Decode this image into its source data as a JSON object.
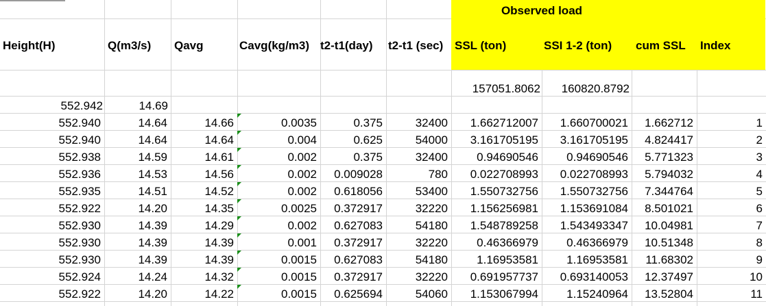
{
  "group_header": "Observed load",
  "headers": {
    "height": "Height(H)",
    "q": "Q(m3/s)",
    "qavg": "Qavg",
    "cavg": "Cavg(kg/m3)",
    "t_day": "t2-t1(day)",
    "t_sec": "t2-t1 (sec)",
    "ssl": "SSL (ton)",
    "ssi": "SSI 1-2 (ton)",
    "cum": "cum SSL",
    "index": "Index"
  },
  "totals": {
    "ssl": "157051.8062",
    "ssi": "160820.8792"
  },
  "first_row": {
    "height": "552.942",
    "q": "14.69"
  },
  "rows": [
    {
      "height": "552.940",
      "q": "14.64",
      "qavg": "14.66",
      "cavg": "0.0035",
      "tday": "0.375",
      "tsec": "32400",
      "ssl": "1.662712007",
      "ssi": "1.660700021",
      "cum": "1.662712",
      "index": "1"
    },
    {
      "height": "552.940",
      "q": "14.64",
      "qavg": "14.64",
      "cavg": "0.004",
      "tday": "0.625",
      "tsec": "54000",
      "ssl": "3.161705195",
      "ssi": "3.161705195",
      "cum": "4.824417",
      "index": "2"
    },
    {
      "height": "552.938",
      "q": "14.59",
      "qavg": "14.61",
      "cavg": "0.002",
      "tday": "0.375",
      "tsec": "32400",
      "ssl": "0.94690546",
      "ssi": "0.94690546",
      "cum": "5.771323",
      "index": "3"
    },
    {
      "height": "552.936",
      "q": "14.53",
      "qavg": "14.56",
      "cavg": "0.002",
      "tday": "0.009028",
      "tsec": "780",
      "ssl": "0.022708993",
      "ssi": "0.022708993",
      "cum": "5.794032",
      "index": "4"
    },
    {
      "height": "552.935",
      "q": "14.51",
      "qavg": "14.52",
      "cavg": "0.002",
      "tday": "0.618056",
      "tsec": "53400",
      "ssl": "1.550732756",
      "ssi": "1.550732756",
      "cum": "7.344764",
      "index": "5"
    },
    {
      "height": "552.922",
      "q": "14.20",
      "qavg": "14.35",
      "cavg": "0.0025",
      "tday": "0.372917",
      "tsec": "32220",
      "ssl": "1.156256981",
      "ssi": "1.153691084",
      "cum": "8.501021",
      "index": "6"
    },
    {
      "height": "552.930",
      "q": "14.39",
      "qavg": "14.29",
      "cavg": "0.002",
      "tday": "0.627083",
      "tsec": "54180",
      "ssl": "1.548789258",
      "ssi": "1.543493347",
      "cum": "10.04981",
      "index": "7"
    },
    {
      "height": "552.930",
      "q": "14.39",
      "qavg": "14.39",
      "cavg": "0.001",
      "tday": "0.372917",
      "tsec": "32220",
      "ssl": "0.46366979",
      "ssi": "0.46366979",
      "cum": "10.51348",
      "index": "8"
    },
    {
      "height": "552.930",
      "q": "14.39",
      "qavg": "14.39",
      "cavg": "0.0015",
      "tday": "0.627083",
      "tsec": "54180",
      "ssl": "1.16953581",
      "ssi": "1.16953581",
      "cum": "11.68302",
      "index": "9"
    },
    {
      "height": "552.924",
      "q": "14.24",
      "qavg": "14.32",
      "cavg": "0.0015",
      "tday": "0.372917",
      "tsec": "32220",
      "ssl": "0.691957737",
      "ssi": "0.693140053",
      "cum": "12.37497",
      "index": "10"
    },
    {
      "height": "552.922",
      "q": "14.20",
      "qavg": "14.22",
      "cavg": "0.0015",
      "tday": "0.625694",
      "tsec": "54060",
      "ssl": "1.153067994",
      "ssi": "1.15240964",
      "cum": "13.52804",
      "index": "11"
    }
  ],
  "colors": {
    "highlight": "#ffff00",
    "gridline": "#d4d4d4",
    "error_marker": "#1a8f1a"
  }
}
